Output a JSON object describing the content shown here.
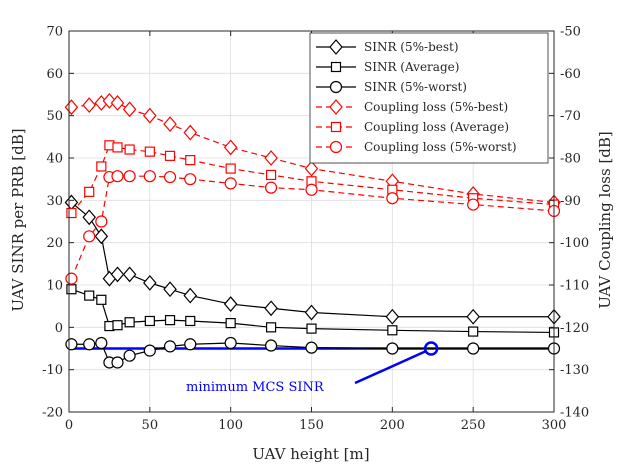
{
  "chart_data": {
    "type": "line",
    "xlabel": "UAV height [m]",
    "ylabel_left": "UAV SINR per PRB [dB]",
    "ylabel_right": "UAV Coupling loss [dB]",
    "xlim": [
      0,
      300
    ],
    "ylim_left": [
      -20,
      70
    ],
    "ylim_right": [
      -140,
      -50
    ],
    "x_ticks": [
      "0",
      "50",
      "100",
      "150",
      "200",
      "250",
      "300"
    ],
    "y_ticks_left": [
      "-20",
      "-10",
      "0",
      "10",
      "20",
      "30",
      "40",
      "50",
      "60",
      "70"
    ],
    "y_ticks_right": [
      "-140",
      "-130",
      "-120",
      "-110",
      "-100",
      "-90",
      "-80",
      "-70",
      "-60",
      "-50"
    ],
    "grid": true,
    "legend_position": "top-right",
    "x": [
      1.5,
      12.5,
      20,
      25,
      30,
      37.5,
      50,
      62.5,
      75,
      100,
      125,
      150,
      200,
      250,
      300
    ],
    "series": [
      {
        "name": "SINR (5%-best)",
        "axis": "left",
        "color": "#000000",
        "linestyle": "solid",
        "marker": "diamond",
        "values": [
          29.5,
          26,
          21.5,
          11.5,
          12.5,
          12.5,
          10.5,
          9,
          7.5,
          5.5,
          4.5,
          3.5,
          2.5,
          2.5,
          2.5
        ]
      },
      {
        "name": "SINR (Average)",
        "axis": "left",
        "color": "#000000",
        "linestyle": "solid",
        "marker": "square",
        "values": [
          9,
          7.5,
          6.5,
          0.3,
          0.5,
          1.2,
          1.5,
          1.7,
          1.5,
          1,
          0,
          -0.3,
          -0.7,
          -1,
          -1.2
        ]
      },
      {
        "name": "SINR (5%-worst)",
        "axis": "left",
        "color": "#000000",
        "linestyle": "solid",
        "marker": "circle",
        "values": [
          -4,
          -4,
          -3.7,
          -8.3,
          -8.3,
          -6.7,
          -5.5,
          -4.5,
          -4,
          -3.7,
          -4.3,
          -4.8,
          -5,
          -5,
          -5
        ]
      },
      {
        "name": "Coupling loss (5%-best)",
        "axis": "right",
        "color": "#ff0000",
        "linestyle": "dashed",
        "marker": "diamond",
        "values": [
          -68,
          -67.5,
          -67,
          -66.5,
          -67,
          -68.5,
          -70,
          -72,
          -74,
          -77.5,
          -80,
          -82.5,
          -85.5,
          -88.5,
          -90.5
        ]
      },
      {
        "name": "Coupling loss (Average)",
        "axis": "right",
        "color": "#ff0000",
        "linestyle": "dashed",
        "marker": "square",
        "values": [
          -93,
          -88,
          -82,
          -77,
          -77.5,
          -78,
          -78.5,
          -79.5,
          -80.5,
          -82.5,
          -84,
          -85.5,
          -87.5,
          -89.5,
          -91
        ]
      },
      {
        "name": "Coupling loss (5%-worst)",
        "axis": "right",
        "color": "#ff0000",
        "linestyle": "dashed",
        "marker": "circle",
        "values": [
          -108.5,
          -98.5,
          -95,
          -84.5,
          -84.3,
          -84.3,
          -84.3,
          -84.5,
          -85,
          -86,
          -87,
          -87.5,
          -89.5,
          -91,
          -92.5
        ]
      }
    ],
    "reference_line": {
      "value": -5,
      "axis": "left",
      "color": "#0000ff"
    },
    "annotation": {
      "text": "minimum MCS SINR",
      "points_to_x": 224,
      "points_to_y": -5,
      "color": "#0000ff"
    }
  }
}
